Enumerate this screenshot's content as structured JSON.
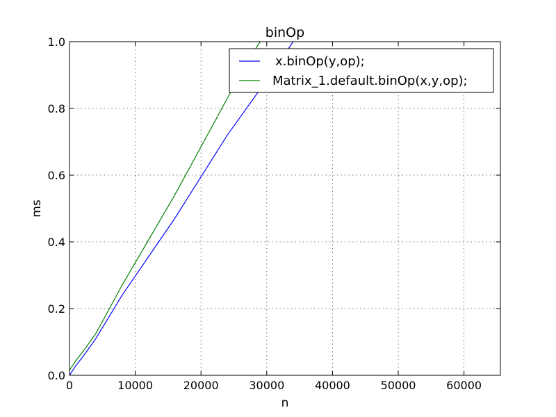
{
  "chart_data": {
    "type": "line",
    "title": "binOp",
    "xlabel": "n",
    "ylabel": "ms",
    "xlim": [
      0,
      65536
    ],
    "ylim": [
      0,
      1.0
    ],
    "xticks": [
      0,
      10000,
      20000,
      30000,
      40000,
      50000,
      60000
    ],
    "xtick_labels": [
      "0",
      "10000",
      "20000",
      "30000",
      "40000",
      "50000",
      "60000"
    ],
    "yticks": [
      0.0,
      0.2,
      0.4,
      0.6,
      0.8,
      1.0
    ],
    "ytick_labels": [
      "0.0",
      "0.2",
      "0.4",
      "0.6",
      "0.8",
      "1.0"
    ],
    "grid": true,
    "legend_position": "top-right",
    "series": [
      {
        "name": "x.binOp(y,op);",
        "color": "#0000ff",
        "x": [
          0,
          1000,
          2000,
          4000,
          8000,
          16000,
          24000,
          32000,
          34000
        ],
        "y": [
          0.0,
          0.03,
          0.055,
          0.11,
          0.24,
          0.47,
          0.72,
          0.94,
          1.0
        ]
      },
      {
        "name": "Matrix_1.default.binOp(x,y,op);",
        "color": "#008000",
        "x": [
          0,
          1000,
          2000,
          4000,
          8000,
          16000,
          24000,
          28000,
          29000
        ],
        "y": [
          0.015,
          0.045,
          0.07,
          0.125,
          0.27,
          0.54,
          0.83,
          0.97,
          1.0
        ]
      }
    ]
  }
}
